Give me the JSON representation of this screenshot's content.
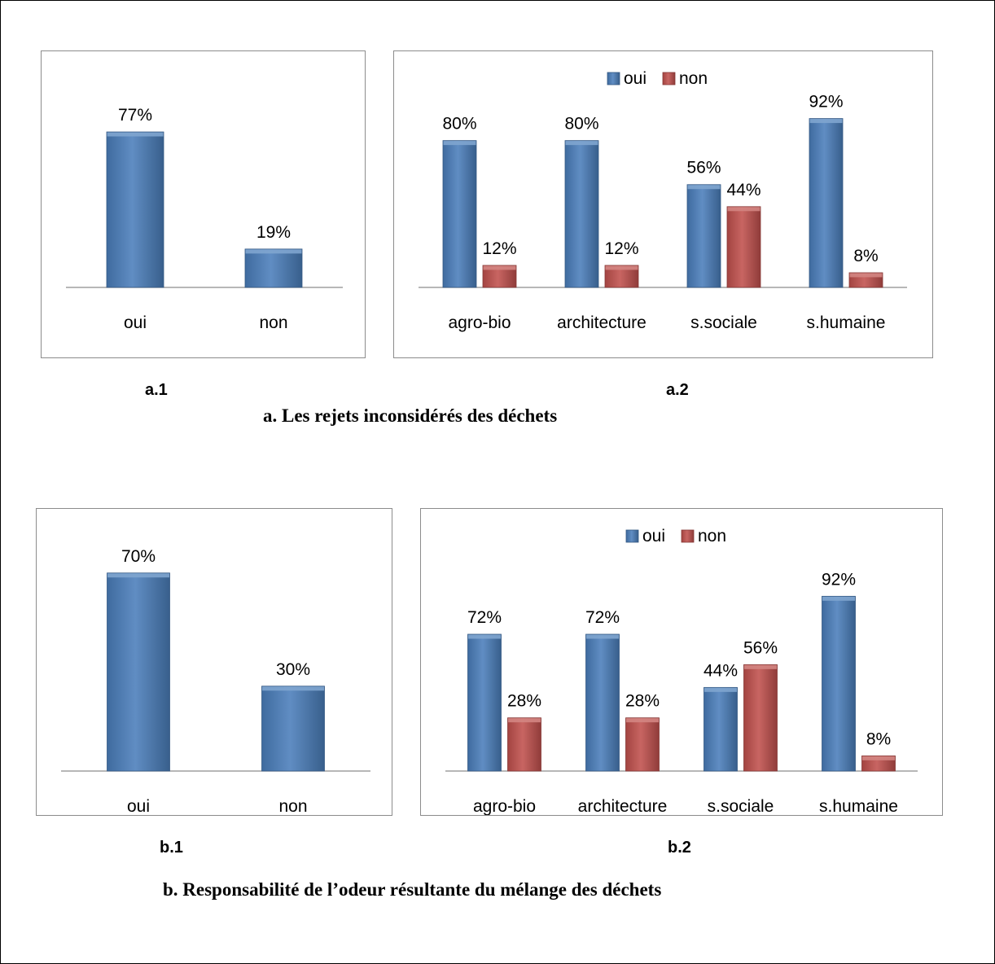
{
  "panel_a": {
    "sub_labels": [
      "a.1",
      "a.2"
    ],
    "caption": "a.    Les rejets inconsidérés des déchets"
  },
  "panel_b": {
    "sub_labels": [
      "b.1",
      "b.2"
    ],
    "caption": "b. Responsabilité de l’odeur résultante du mélange des déchets"
  },
  "colors": {
    "oui": "#4a7ebb",
    "non": "#c0504d"
  },
  "chart_data": [
    {
      "id": "a1",
      "type": "bar",
      "categories": [
        "oui",
        "non"
      ],
      "values": [
        77,
        19
      ],
      "value_labels": [
        "77%",
        "19%"
      ],
      "colors": [
        "#4a7ebb",
        "#4a7ebb"
      ],
      "ylim": [
        0,
        100
      ]
    },
    {
      "id": "a2",
      "type": "bar",
      "categories": [
        "agro-bio",
        "architecture",
        "s.sociale",
        "s.humaine"
      ],
      "series": [
        {
          "name": "oui",
          "values": [
            80,
            80,
            56,
            92
          ],
          "value_labels": [
            "80%",
            "80%",
            "56%",
            "92%"
          ],
          "color": "#4a7ebb"
        },
        {
          "name": "non",
          "values": [
            12,
            12,
            44,
            8
          ],
          "value_labels": [
            "12%",
            "12%",
            "44%",
            "8%"
          ],
          "color": "#c0504d"
        }
      ],
      "legend": "top",
      "ylim": [
        0,
        110
      ]
    },
    {
      "id": "b1",
      "type": "bar",
      "categories": [
        "oui",
        "non"
      ],
      "values": [
        70,
        30
      ],
      "value_labels": [
        "70%",
        "30%"
      ],
      "colors": [
        "#4a7ebb",
        "#4a7ebb"
      ],
      "ylim": [
        0,
        80
      ]
    },
    {
      "id": "b2",
      "type": "bar",
      "categories": [
        "agro-bio",
        "architecture",
        "s.sociale",
        "s.humaine"
      ],
      "series": [
        {
          "name": "oui",
          "values": [
            72,
            72,
            44,
            92
          ],
          "value_labels": [
            "72%",
            "72%",
            "44%",
            "92%"
          ],
          "color": "#4a7ebb"
        },
        {
          "name": "non",
          "values": [
            28,
            28,
            56,
            8
          ],
          "value_labels": [
            "28%",
            "28%",
            "56%",
            "8%"
          ],
          "color": "#c0504d"
        }
      ],
      "legend": "top",
      "ylim": [
        0,
        120
      ]
    }
  ]
}
